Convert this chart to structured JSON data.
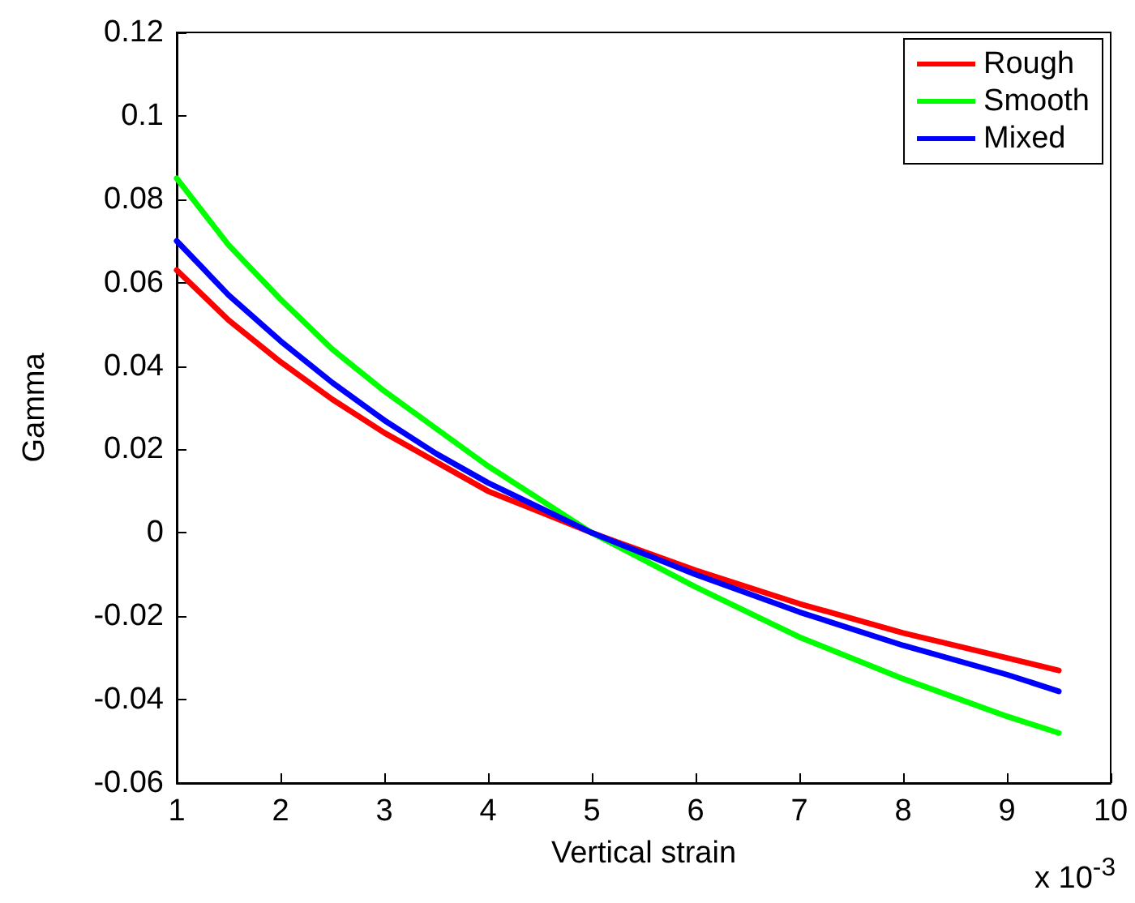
{
  "chart_data": {
    "type": "line",
    "xlabel": "Vertical strain",
    "ylabel": "Gamma",
    "annotations": [
      "x 10$^{-3}$"
    ],
    "x": [
      1,
      1.5,
      2,
      2.5,
      3,
      3.5,
      4,
      4.5,
      5,
      6,
      7,
      8,
      9,
      9.5
    ],
    "series": [
      {
        "name": "Rough",
        "color": "#ff0000",
        "values": [
          0.063,
          0.051,
          0.041,
          0.032,
          0.024,
          0.017,
          0.01,
          0.005,
          0,
          -0.009,
          -0.017,
          -0.024,
          -0.03,
          -0.033
        ]
      },
      {
        "name": "Smooth",
        "color": "#00ff00",
        "values": [
          0.085,
          0.069,
          0.056,
          0.044,
          0.034,
          0.025,
          0.016,
          0.008,
          0,
          -0.013,
          -0.025,
          -0.035,
          -0.044,
          -0.048
        ]
      },
      {
        "name": "Mixed",
        "color": "#0000ff",
        "values": [
          0.07,
          0.057,
          0.046,
          0.036,
          0.027,
          0.019,
          0.012,
          0.006,
          0,
          -0.01,
          -0.019,
          -0.027,
          -0.034,
          -0.038
        ]
      }
    ],
    "xlim": [
      1,
      10
    ],
    "xticks": [
      1,
      2,
      3,
      4,
      5,
      6,
      7,
      8,
      9,
      10
    ],
    "ylim": [
      -0.06,
      0.12
    ],
    "yticks": [
      -0.06,
      -0.04,
      -0.02,
      0,
      0.02,
      0.04,
      0.06,
      0.08,
      0.1,
      0.12
    ],
    "grid": false,
    "legend": "top right",
    "marker": "none",
    "line_style": "solid"
  }
}
